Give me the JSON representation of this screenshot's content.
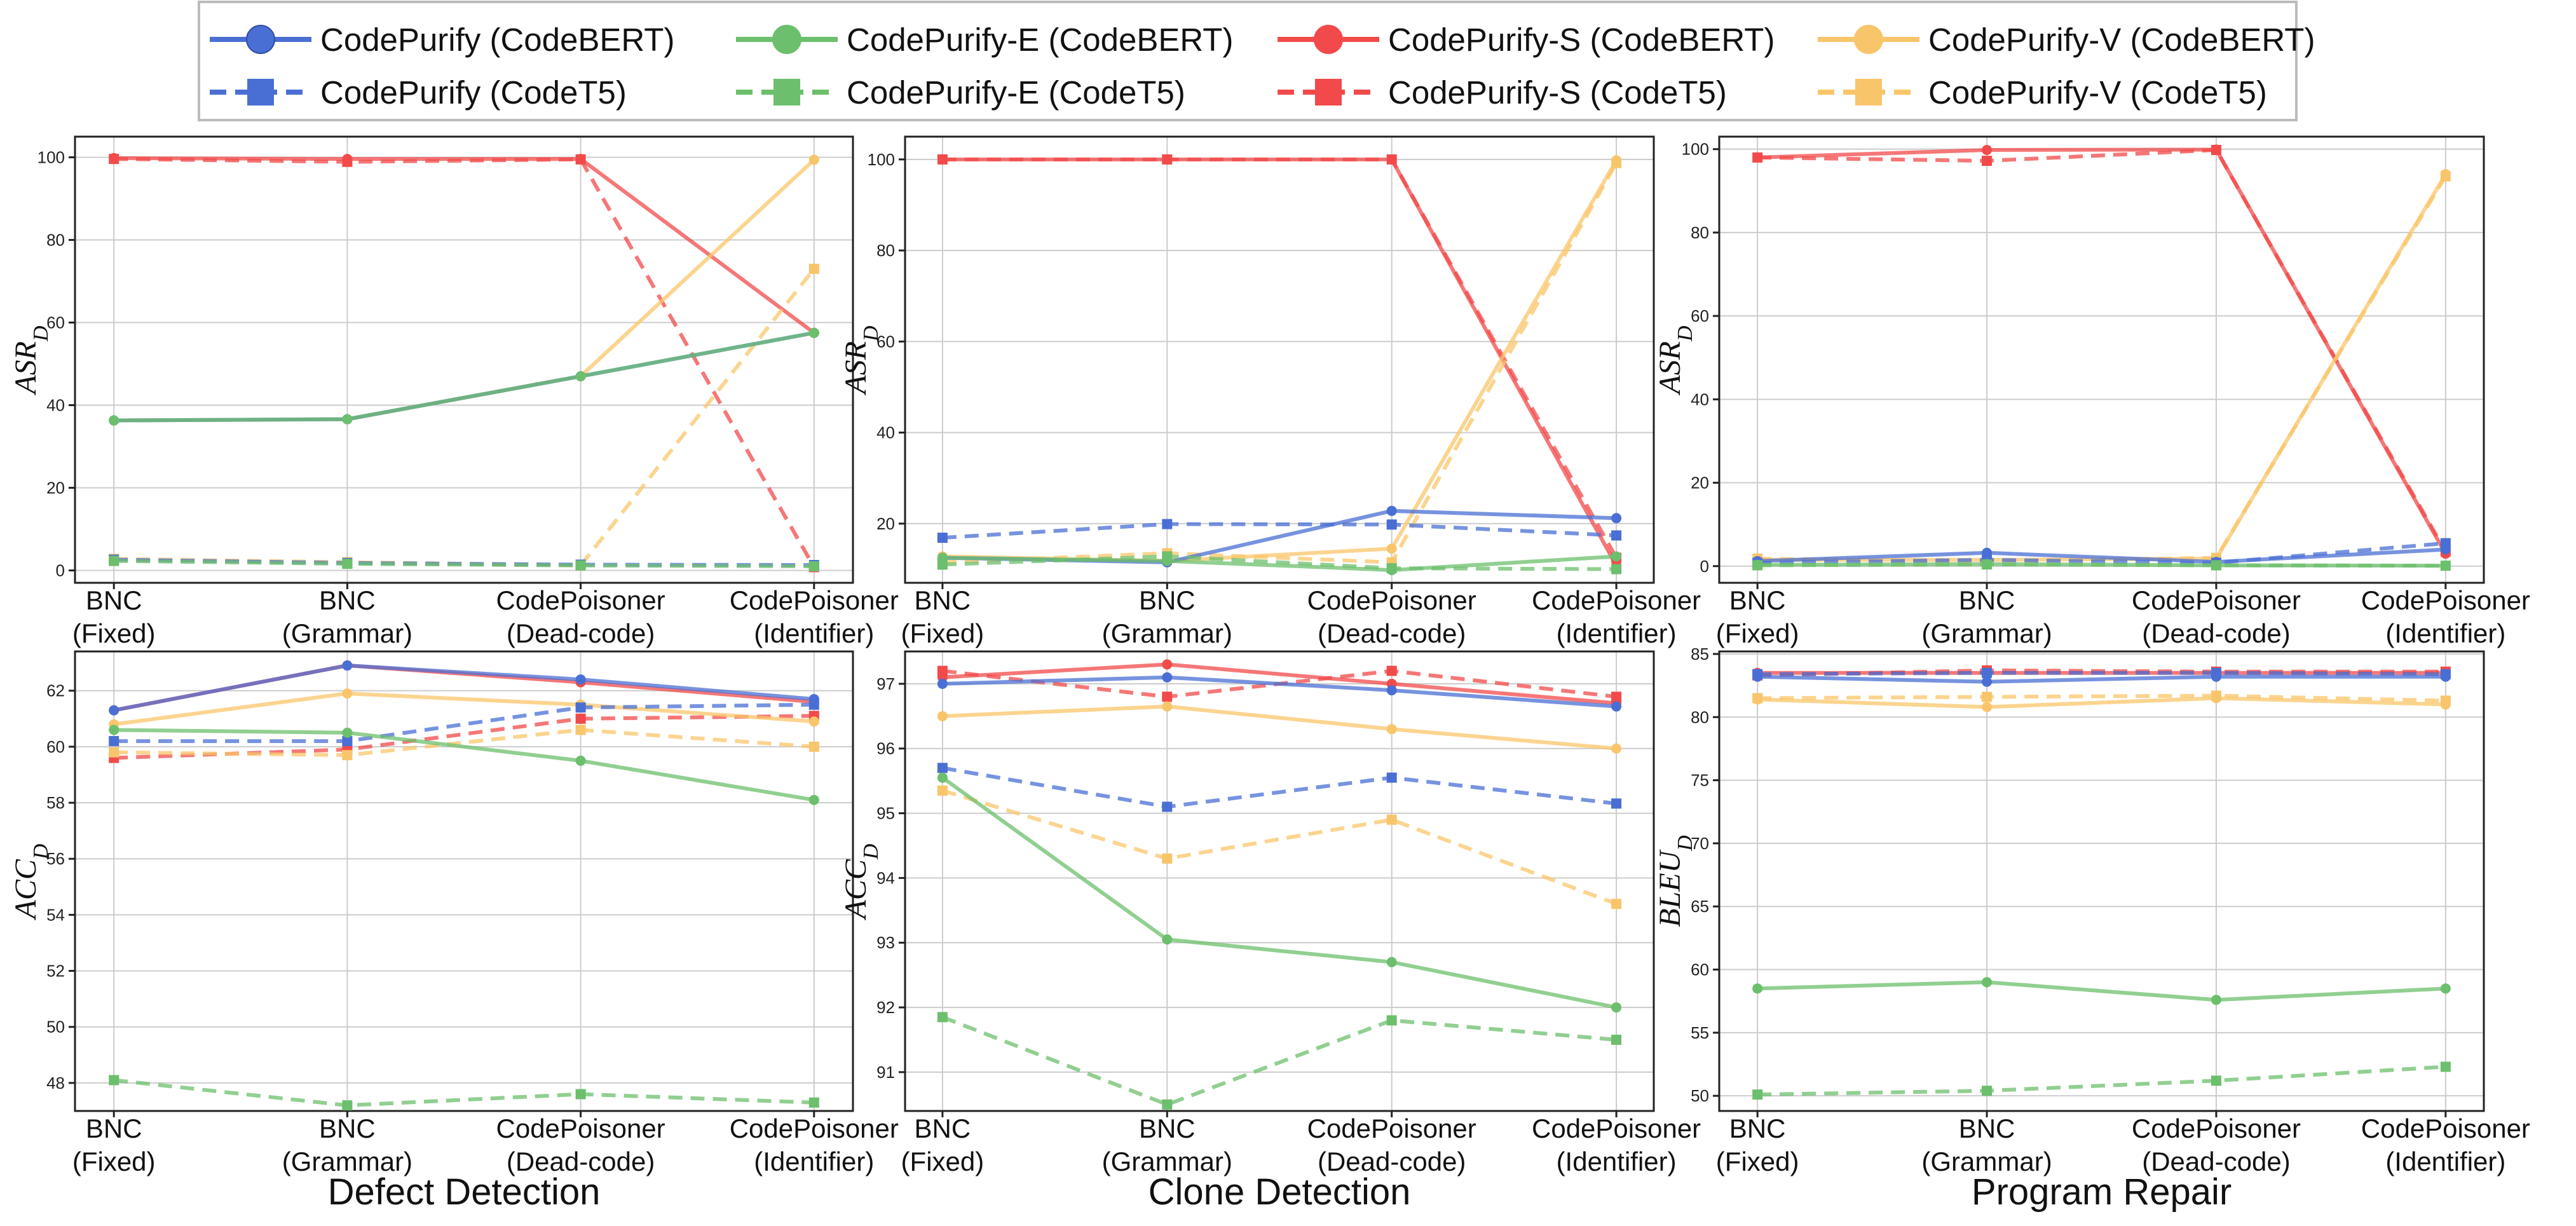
{
  "categories": [
    [
      "BNC",
      "(Fixed)"
    ],
    [
      "BNC",
      "(Grammar)"
    ],
    [
      "CodePoisoner",
      "(Dead-code)"
    ],
    [
      "CodePoisoner",
      "(Identifier)"
    ]
  ],
  "legend": [
    {
      "key": "purify_bert",
      "label": "CodePurify (CodeBERT)",
      "color": "#4a6fd4",
      "dashed": false,
      "marker": "circle"
    },
    {
      "key": "purifyE_bert",
      "label": "CodePurify-E (CodeBERT)",
      "color": "#6cbf6c",
      "dashed": false,
      "marker": "circle"
    },
    {
      "key": "purifyS_bert",
      "label": "CodePurify-S (CodeBERT)",
      "color": "#f24a4a",
      "dashed": false,
      "marker": "circle"
    },
    {
      "key": "purifyV_bert",
      "label": "CodePurify-V (CodeBERT)",
      "color": "#f9c56a",
      "dashed": false,
      "marker": "circle"
    },
    {
      "key": "purify_t5",
      "label": "CodePurify (CodeT5)",
      "color": "#4a6fd4",
      "dashed": true,
      "marker": "square"
    },
    {
      "key": "purifyE_t5",
      "label": "CodePurify-E (CodeT5)",
      "color": "#6cbf6c",
      "dashed": true,
      "marker": "square"
    },
    {
      "key": "purifyS_t5",
      "label": "CodePurify-S (CodeT5)",
      "color": "#f24a4a",
      "dashed": true,
      "marker": "square"
    },
    {
      "key": "purifyV_t5",
      "label": "CodePurify-V (CodeT5)",
      "color": "#f9c56a",
      "dashed": true,
      "marker": "square"
    }
  ],
  "column_titles": [
    "Defect Detection",
    "Clone Detection",
    "Program Repair"
  ],
  "chart_data": [
    {
      "type": "line",
      "id": "dd_asr",
      "title": "Defect Detection",
      "ylabel": "ASR",
      "ylabel_sub": "D",
      "ylim": [
        -3,
        105
      ],
      "yticks": [
        0,
        20,
        40,
        60,
        80,
        100
      ],
      "categories": [
        "BNC (Fixed)",
        "BNC (Grammar)",
        "CodePoisoner (Dead-code)",
        "CodePoisoner (Identifier)"
      ],
      "series": [
        {
          "name": "CodePurify (CodeBERT)",
          "key": "purify_bert",
          "values": [
            36.3,
            36.6,
            47.0,
            57.5
          ]
        },
        {
          "name": "CodePurify (CodeT5)",
          "key": "purify_t5",
          "values": [
            2.6,
            1.8,
            1.4,
            1.3
          ]
        },
        {
          "name": "CodePurify-E (CodeBERT)",
          "key": "purifyE_bert",
          "values": [
            36.3,
            36.6,
            47.0,
            57.5
          ]
        },
        {
          "name": "CodePurify-E (CodeT5)",
          "key": "purifyE_t5",
          "values": [
            2.3,
            1.6,
            1.2,
            1.0
          ]
        },
        {
          "name": "CodePurify-S (CodeBERT)",
          "key": "purifyS_bert",
          "values": [
            99.8,
            99.6,
            99.6,
            57.5
          ]
        },
        {
          "name": "CodePurify-S (CodeT5)",
          "key": "purifyS_t5",
          "values": [
            99.6,
            98.9,
            99.5,
            0.8
          ]
        },
        {
          "name": "CodePurify-V (CodeBERT)",
          "key": "purifyV_bert",
          "values": [
            36.3,
            36.6,
            47.0,
            99.4
          ]
        },
        {
          "name": "CodePurify-V (CodeT5)",
          "key": "purifyV_t5",
          "values": [
            2.8,
            2.0,
            1.2,
            73.0
          ]
        }
      ]
    },
    {
      "type": "line",
      "id": "cd_asr",
      "title": "Clone Detection",
      "ylabel": "ASR",
      "ylabel_sub": "D",
      "ylim": [
        7,
        105
      ],
      "yticks": [
        20,
        40,
        60,
        80,
        100
      ],
      "categories": [
        "BNC (Fixed)",
        "BNC (Grammar)",
        "CodePoisoner (Dead-code)",
        "CodePoisoner (Identifier)"
      ],
      "series": [
        {
          "name": "CodePurify (CodeBERT)",
          "key": "purify_bert",
          "values": [
            12.5,
            11.5,
            22.8,
            21.2
          ]
        },
        {
          "name": "CodePurify (CodeT5)",
          "key": "purify_t5",
          "values": [
            16.9,
            19.9,
            19.8,
            17.4
          ]
        },
        {
          "name": "CodePurify-E (CodeBERT)",
          "key": "purifyE_bert",
          "values": [
            12.5,
            11.8,
            9.8,
            12.8
          ]
        },
        {
          "name": "CodePurify-E (CodeT5)",
          "key": "purifyE_t5",
          "values": [
            11.0,
            12.8,
            10.2,
            10.0
          ]
        },
        {
          "name": "CodePurify-S (CodeBERT)",
          "key": "purifyS_bert",
          "values": [
            100,
            100,
            100,
            10.8
          ]
        },
        {
          "name": "CodePurify-S (CodeT5)",
          "key": "purifyS_t5",
          "values": [
            100,
            100,
            100,
            12.5
          ]
        },
        {
          "name": "CodePurify-V (CodeBERT)",
          "key": "purifyV_bert",
          "values": [
            12.8,
            11.8,
            14.5,
            99.8
          ]
        },
        {
          "name": "CodePurify-V (CodeT5)",
          "key": "purifyV_t5",
          "values": [
            11.5,
            13.5,
            11.5,
            99.2
          ]
        }
      ]
    },
    {
      "type": "line",
      "id": "pr_asr",
      "title": "Program Repair",
      "ylabel": "ASR",
      "ylabel_sub": "D",
      "ylim": [
        -4,
        103
      ],
      "yticks": [
        0,
        20,
        40,
        60,
        80,
        100
      ],
      "categories": [
        "BNC (Fixed)",
        "BNC (Grammar)",
        "CodePoisoner (Dead-code)",
        "CodePoisoner (Identifier)"
      ],
      "series": [
        {
          "name": "CodePurify (CodeBERT)",
          "key": "purify_bert",
          "values": [
            1.2,
            3.2,
            1.0,
            4.0
          ]
        },
        {
          "name": "CodePurify (CodeT5)",
          "key": "purify_t5",
          "values": [
            0.8,
            1.5,
            0.8,
            5.5
          ]
        },
        {
          "name": "CodePurify-E (CodeBERT)",
          "key": "purifyE_bert",
          "values": [
            0.3,
            0.5,
            0.2,
            0.1
          ]
        },
        {
          "name": "CodePurify-E (CodeT5)",
          "key": "purifyE_t5",
          "values": [
            0.2,
            0.4,
            0.2,
            0.1
          ]
        },
        {
          "name": "CodePurify-S (CodeBERT)",
          "key": "purifyS_bert",
          "values": [
            98.0,
            99.8,
            99.9,
            3.0
          ]
        },
        {
          "name": "CodePurify-S (CodeT5)",
          "key": "purifyS_t5",
          "values": [
            98.0,
            97.2,
            99.8,
            3.5
          ]
        },
        {
          "name": "CodePurify-V (CodeBERT)",
          "key": "purifyV_bert",
          "values": [
            1.5,
            1.5,
            1.8,
            94.0
          ]
        },
        {
          "name": "CodePurify-V (CodeT5)",
          "key": "purifyV_t5",
          "values": [
            1.8,
            1.2,
            2.0,
            93.5
          ]
        }
      ]
    },
    {
      "type": "line",
      "id": "dd_acc",
      "title": "Defect Detection",
      "ylabel": "ACC",
      "ylabel_sub": "D",
      "ylim": [
        47,
        63.4
      ],
      "yticks": [
        48,
        50,
        52,
        54,
        56,
        58,
        60,
        62
      ],
      "categories": [
        "BNC (Fixed)",
        "BNC (Grammar)",
        "CodePoisoner (Dead-code)",
        "CodePoisoner (Identifier)"
      ],
      "series": [
        {
          "name": "CodePurify (CodeBERT)",
          "key": "purify_bert",
          "values": [
            61.3,
            62.9,
            62.4,
            61.7
          ]
        },
        {
          "name": "CodePurify (CodeT5)",
          "key": "purify_t5",
          "values": [
            60.2,
            60.2,
            61.4,
            61.5
          ]
        },
        {
          "name": "CodePurify-E (CodeBERT)",
          "key": "purifyE_bert",
          "values": [
            60.6,
            60.5,
            59.5,
            58.1
          ]
        },
        {
          "name": "CodePurify-E (CodeT5)",
          "key": "purifyE_t5",
          "values": [
            48.1,
            47.2,
            47.6,
            47.3
          ]
        },
        {
          "name": "CodePurify-S (CodeBERT)",
          "key": "purifyS_bert",
          "values": [
            61.3,
            62.9,
            62.3,
            61.6
          ]
        },
        {
          "name": "CodePurify-S (CodeT5)",
          "key": "purifyS_t5",
          "values": [
            59.6,
            59.9,
            61.0,
            61.1
          ]
        },
        {
          "name": "CodePurify-V (CodeBERT)",
          "key": "purifyV_bert",
          "values": [
            60.8,
            61.9,
            61.5,
            60.9
          ]
        },
        {
          "name": "CodePurify-V (CodeT5)",
          "key": "purifyV_t5",
          "values": [
            59.8,
            59.7,
            60.6,
            60.0
          ]
        }
      ]
    },
    {
      "type": "line",
      "id": "cd_acc",
      "title": "Clone Detection",
      "ylabel": "ACC",
      "ylabel_sub": "D",
      "ylim": [
        90.4,
        97.5
      ],
      "yticks": [
        91,
        92,
        93,
        94,
        95,
        96,
        97
      ],
      "categories": [
        "BNC (Fixed)",
        "BNC (Grammar)",
        "CodePoisoner (Dead-code)",
        "CodePoisoner (Identifier)"
      ],
      "series": [
        {
          "name": "CodePurify (CodeBERT)",
          "key": "purify_bert",
          "values": [
            97.0,
            97.1,
            96.9,
            96.65
          ]
        },
        {
          "name": "CodePurify (CodeT5)",
          "key": "purify_t5",
          "values": [
            95.7,
            95.1,
            95.55,
            95.15
          ]
        },
        {
          "name": "CodePurify-E (CodeBERT)",
          "key": "purifyE_bert",
          "values": [
            95.55,
            93.05,
            92.7,
            92.0
          ]
        },
        {
          "name": "CodePurify-E (CodeT5)",
          "key": "purifyE_t5",
          "values": [
            91.85,
            90.5,
            91.8,
            91.5
          ]
        },
        {
          "name": "CodePurify-S (CodeBERT)",
          "key": "purifyS_bert",
          "values": [
            97.1,
            97.3,
            97.0,
            96.7
          ]
        },
        {
          "name": "CodePurify-S (CodeT5)",
          "key": "purifyS_t5",
          "values": [
            97.2,
            96.8,
            97.2,
            96.8
          ]
        },
        {
          "name": "CodePurify-V (CodeBERT)",
          "key": "purifyV_bert",
          "values": [
            96.5,
            96.65,
            96.3,
            96.0
          ]
        },
        {
          "name": "CodePurify-V (CodeT5)",
          "key": "purifyV_t5",
          "values": [
            95.35,
            94.3,
            94.9,
            93.6
          ]
        }
      ]
    },
    {
      "type": "line",
      "id": "pr_bleu",
      "title": "Program Repair",
      "ylabel": "BLEU",
      "ylabel_sub": "D",
      "ylim": [
        48.8,
        85.2
      ],
      "yticks": [
        50,
        55,
        60,
        65,
        70,
        75,
        80,
        85
      ],
      "categories": [
        "BNC (Fixed)",
        "BNC (Grammar)",
        "CodePoisoner (Dead-code)",
        "CodePoisoner (Identifier)"
      ],
      "series": [
        {
          "name": "CodePurify (CodeBERT)",
          "key": "purify_bert",
          "values": [
            83.2,
            82.8,
            83.2,
            83.2
          ]
        },
        {
          "name": "CodePurify (CodeT5)",
          "key": "purify_t5",
          "values": [
            83.4,
            83.5,
            83.5,
            83.4
          ]
        },
        {
          "name": "CodePurify-E (CodeBERT)",
          "key": "purifyE_bert",
          "values": [
            58.5,
            59.0,
            57.6,
            58.5
          ]
        },
        {
          "name": "CodePurify-E (CodeT5)",
          "key": "purifyE_t5",
          "values": [
            50.1,
            50.4,
            51.2,
            52.3
          ]
        },
        {
          "name": "CodePurify-S (CodeBERT)",
          "key": "purifyS_bert",
          "values": [
            83.5,
            83.5,
            83.5,
            83.5
          ]
        },
        {
          "name": "CodePurify-S (CodeT5)",
          "key": "purifyS_t5",
          "values": [
            83.3,
            83.7,
            83.6,
            83.6
          ]
        },
        {
          "name": "CodePurify-V (CodeBERT)",
          "key": "purifyV_bert",
          "values": [
            81.4,
            80.8,
            81.5,
            81.0
          ]
        },
        {
          "name": "CodePurify-V (CodeT5)",
          "key": "purifyV_t5",
          "values": [
            81.5,
            81.6,
            81.7,
            81.3
          ]
        }
      ]
    }
  ]
}
